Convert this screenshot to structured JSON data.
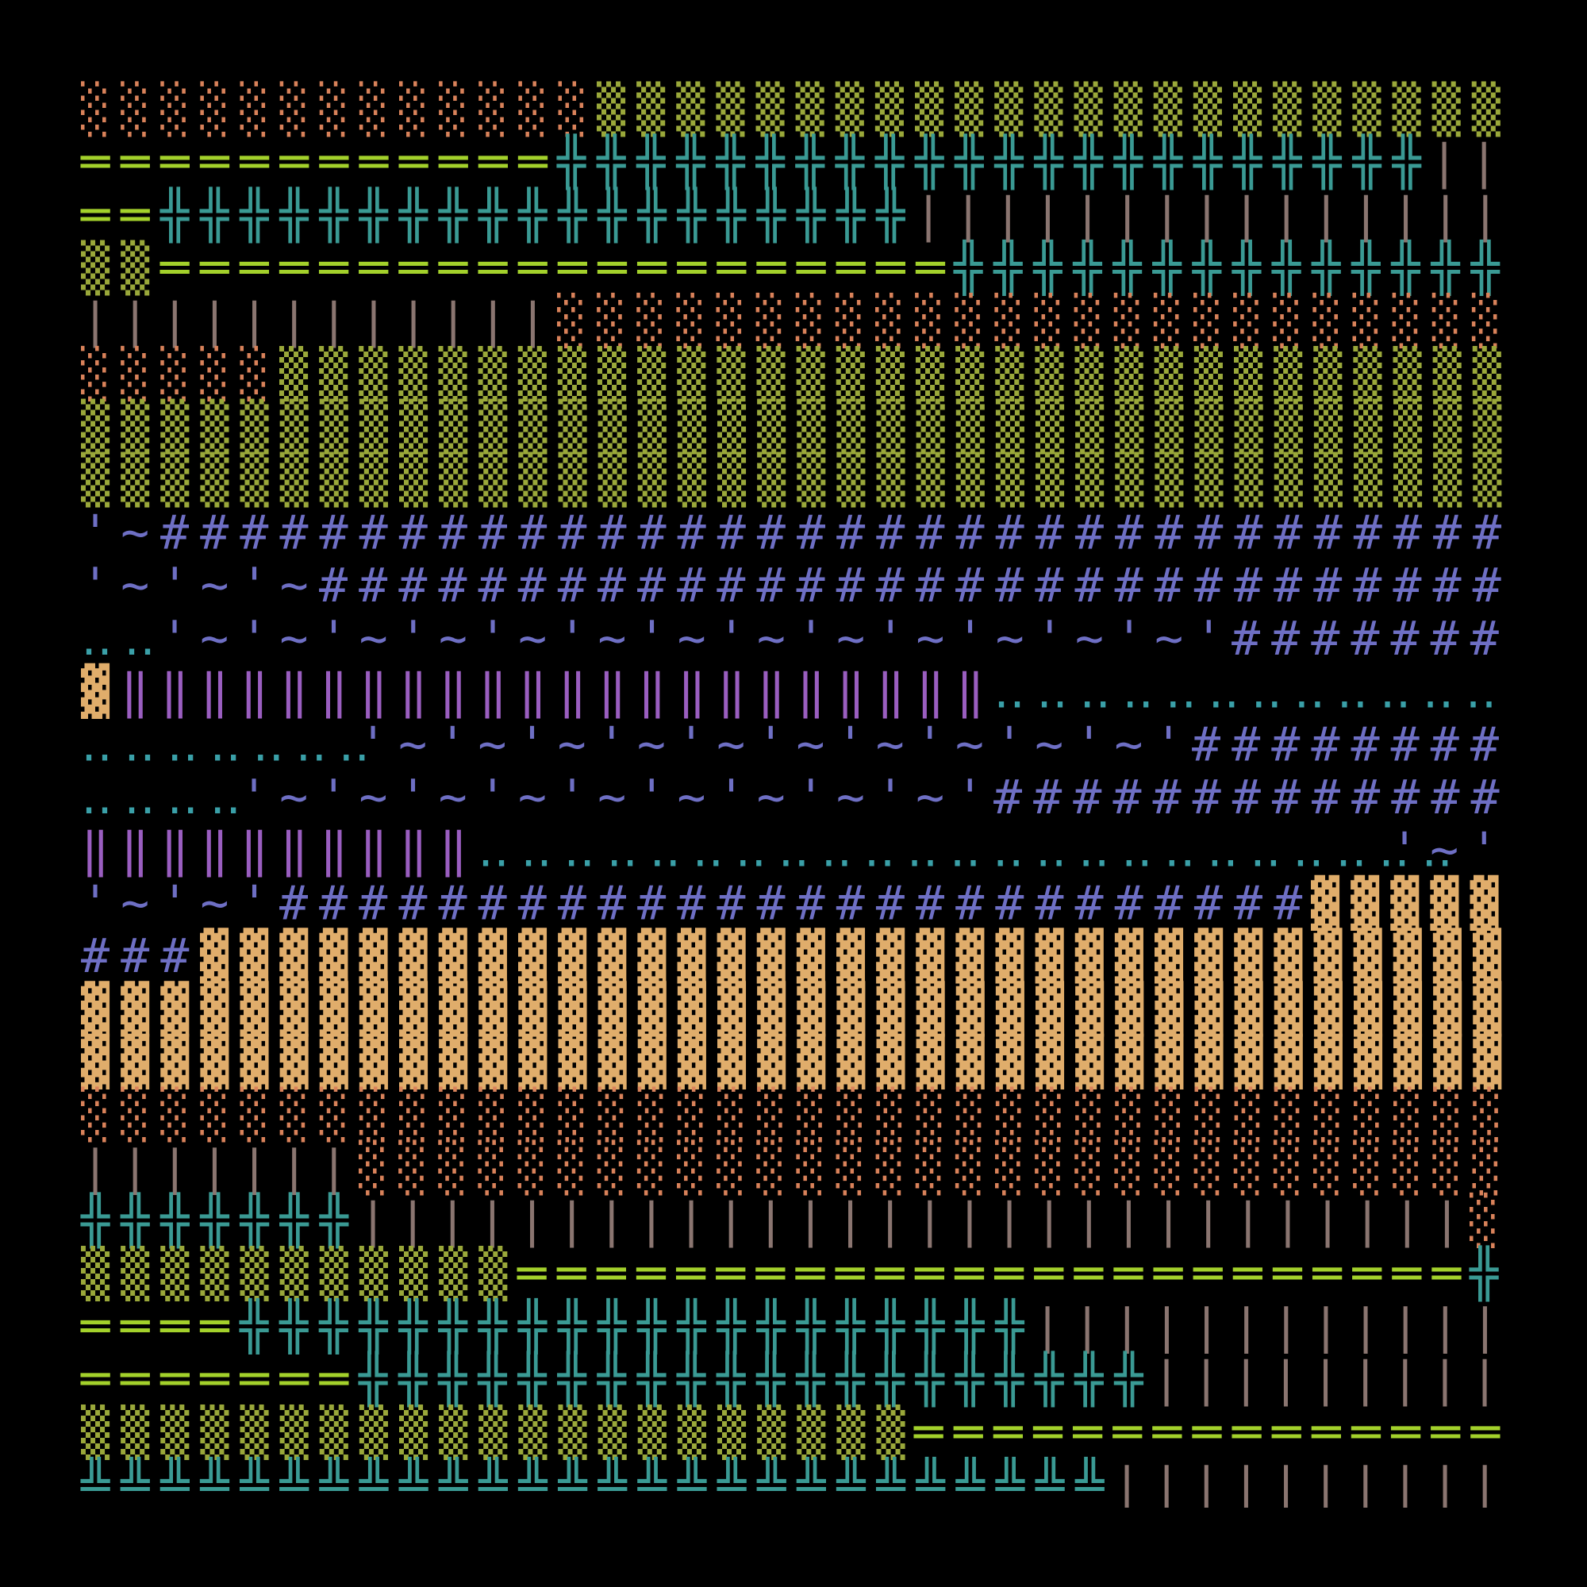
{
  "rows": [
    {
      "segments": [
        {
          "text": "░░░░░░░░░░░░░",
          "color": "#d9825a"
        },
        {
          "text": "▒▒▒▒▒▒▒▒▒▒▒▒▒▒▒▒▒▒▒▒▒▒▒",
          "color": "#9aa83a"
        }
      ]
    },
    {
      "segments": [
        {
          "text": "════════════",
          "color": "#a3d12b"
        },
        {
          "text": "╬╬╬╬╬╬╬╬╬╬╬╬╬╬╬╬╬╬╬╬╬╬",
          "color": "#3a9a94"
        },
        {
          "text": "||",
          "color": "#8a7570"
        }
      ]
    },
    {
      "segments": [
        {
          "text": "══",
          "color": "#a3d12b"
        },
        {
          "text": "╬╬╬╬╬╬╬╬╬╬╬╬╬╬╬╬╬╬╬",
          "color": "#3a9a94"
        },
        {
          "text": "|||||||||||||||",
          "color": "#8a7570"
        }
      ]
    },
    {
      "segments": [
        {
          "text": "▒▒",
          "color": "#9aa83a"
        },
        {
          "text": "════════════════════",
          "color": "#a3d12b"
        },
        {
          "text": "╬╬╬╬╬╬╬╬╬╬╬╬╬╬",
          "color": "#3a9a94"
        }
      ]
    },
    {
      "segments": [
        {
          "text": "||||||||||||",
          "color": "#8a7570"
        },
        {
          "text": "░░░░░░░░░░░░░░░░░░░░░░░░",
          "color": "#d9825a"
        }
      ]
    },
    {
      "segments": [
        {
          "text": "░░░░░",
          "color": "#d9825a"
        },
        {
          "text": "▒▒▒▒▒▒▒▒▒▒▒▒▒▒▒▒▒▒▒▒▒▒▒▒▒▒▒▒▒▒▒",
          "color": "#9aa83a"
        }
      ]
    },
    {
      "segments": [
        {
          "text": "▒▒▒▒▒▒▒▒▒▒▒▒▒▒▒▒▒▒▒▒▒▒▒▒▒▒▒▒▒▒▒▒▒▒▒▒",
          "color": "#9aa83a"
        }
      ]
    },
    {
      "segments": [
        {
          "text": "▒▒▒▒▒▒▒▒▒▒▒▒▒▒▒▒▒▒▒▒▒▒▒▒▒▒▒▒▒▒▒▒▒▒▒▒",
          "color": "#9aa83a"
        }
      ]
    },
    {
      "segments": [
        {
          "text": "'~",
          "color": "#6e6fc4"
        },
        {
          "text": "##################################",
          "color": "#6e6fc4"
        }
      ]
    },
    {
      "segments": [
        {
          "text": "'~'~'~",
          "color": "#6e6fc4"
        },
        {
          "text": "##############################",
          "color": "#6e6fc4"
        }
      ]
    },
    {
      "segments": [
        {
          "text": "‥‥",
          "color": "#3aa0a8"
        },
        {
          "text": "'~'~'~'~'~'~'~'~'~'~'~'~'~'",
          "color": "#6e6fc4"
        },
        {
          "text": "#######",
          "color": "#6e6fc4"
        }
      ]
    },
    {
      "segments": [
        {
          "text": "▓",
          "color": "#e0ad6b"
        },
        {
          "text": "‖‖‖‖‖‖‖‖‖‖‖‖‖‖‖‖‖‖‖‖‖‖",
          "color": "#9a5ec0"
        },
        {
          "text": "‥‥‥‥‥‥‥‥‥‥‥‥‥",
          "color": "#3aa0a8"
        }
      ]
    },
    {
      "segments": [
        {
          "text": "‥‥‥‥‥‥‥",
          "color": "#3aa0a8"
        },
        {
          "text": "'~'~'~'~'~'~'~'~'~'~'",
          "color": "#6e6fc4"
        },
        {
          "text": "########",
          "color": "#6e6fc4"
        }
      ]
    },
    {
      "segments": [
        {
          "text": "‥‥‥‥",
          "color": "#3aa0a8"
        },
        {
          "text": "'~'~'~'~'~'~'~'~'~'",
          "color": "#6e6fc4"
        },
        {
          "text": "#############",
          "color": "#6e6fc4"
        }
      ]
    },
    {
      "segments": [
        {
          "text": "‖‖‖‖‖‖‖‖‖‖",
          "color": "#9a5ec0"
        },
        {
          "text": "‥‥‥‥‥‥‥‥‥‥‥‥‥‥‥‥‥‥‥‥‥‥‥",
          "color": "#3aa0a8"
        },
        {
          "text": "'~'",
          "color": "#6e6fc4"
        }
      ]
    },
    {
      "segments": [
        {
          "text": "'~'~'",
          "color": "#6e6fc4"
        },
        {
          "text": "##########################",
          "color": "#6e6fc4"
        },
        {
          "text": "▓▓▓▓▓",
          "color": "#e0ad6b"
        }
      ]
    },
    {
      "segments": [
        {
          "text": "###",
          "color": "#6e6fc4"
        },
        {
          "text": "▓▓▓▓▓▓▓▓▓▓▓▓▓▓▓▓▓▓▓▓▓▓▓▓▓▓▓▓▓▓▓▓▓",
          "color": "#e0ad6b"
        }
      ]
    },
    {
      "segments": [
        {
          "text": "▓▓▓▓▓▓▓▓▓▓▓▓▓▓▓▓▓▓▓▓▓▓▓▓▓▓▓▓▓▓▓▓▓▓▓▓",
          "color": "#e0ad6b"
        }
      ]
    },
    {
      "segments": [
        {
          "text": "▓▓▓▓▓▓▓▓▓▓▓▓▓▓▓▓▓▓▓▓▓▓▓▓▓▓▓▓▓▓▓▓▓▓▓▓",
          "color": "#e0ad6b"
        }
      ]
    },
    {
      "segments": [
        {
          "text": "░░░░░░░░░░░░░░░░░░░░░░░░░░░░░░░░░░░░",
          "color": "#d9825a"
        }
      ]
    },
    {
      "segments": [
        {
          "text": "|||||||",
          "color": "#8a7570"
        },
        {
          "text": "░░░░░░░░░░░░░░░░░░░░░░░░░░░░░",
          "color": "#d9825a"
        }
      ]
    },
    {
      "segments": [
        {
          "text": "╬╬╬╬╬╬╬",
          "color": "#3a9a94"
        },
        {
          "text": "||||||||||||||||||||||||||||",
          "color": "#8a7570"
        },
        {
          "text": "░",
          "color": "#d9825a"
        }
      ]
    },
    {
      "segments": [
        {
          "text": "▒▒▒▒▒▒▒▒▒▒▒",
          "color": "#9aa83a"
        },
        {
          "text": "════════════════════════",
          "color": "#a3d12b"
        },
        {
          "text": "╬",
          "color": "#3a9a94"
        }
      ]
    },
    {
      "segments": [
        {
          "text": "════",
          "color": "#a3d12b"
        },
        {
          "text": "╬╬╬╬╬╬╬╬╬╬╬╬╬╬╬╬╬╬╬╬",
          "color": "#3a9a94"
        },
        {
          "text": "||||||||||||",
          "color": "#8a7570"
        }
      ]
    },
    {
      "segments": [
        {
          "text": "═══════",
          "color": "#a3d12b"
        },
        {
          "text": "╬╬╬╬╬╬╬╬╬╬╬╬╬╬╬╬╬╬╬╬",
          "color": "#3a9a94"
        },
        {
          "text": "|||||||||",
          "color": "#8a7570"
        }
      ]
    },
    {
      "segments": [
        {
          "text": "▒▒▒▒▒▒▒▒▒▒▒▒▒▒▒▒▒▒▒▒▒",
          "color": "#9aa83a"
        },
        {
          "text": "═══════════════",
          "color": "#a3d12b"
        }
      ]
    },
    {
      "segments": [
        {
          "text": "╩╩╩╩╩╩╩╩╩╩╩╩╩╩╩╩╩╩╩╩╩╩╩╩╩╩",
          "color": "#3a9a94"
        },
        {
          "text": "||||||||||",
          "color": "#8a7570"
        }
      ]
    }
  ]
}
